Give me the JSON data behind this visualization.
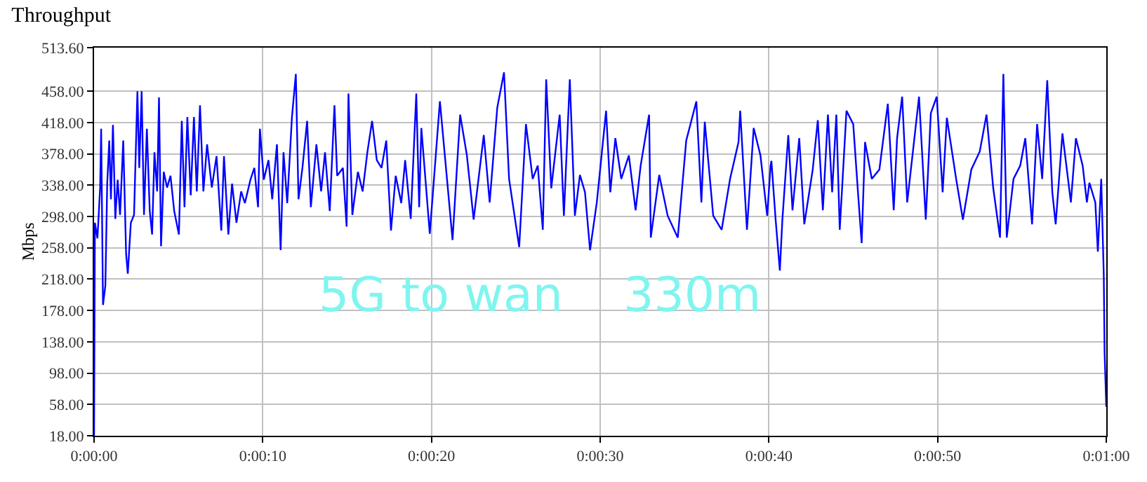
{
  "chart_data": {
    "type": "line",
    "title": "Throughput",
    "ylabel": "Mbps",
    "annotations": [
      "5G to wan    330m"
    ],
    "x": [
      0,
      0.05,
      0.2,
      0.36,
      0.42,
      0.53,
      0.67,
      0.78,
      0.9,
      1.0,
      1.12,
      1.26,
      1.4,
      1.54,
      1.73,
      1.9,
      2.0,
      2.18,
      2.37,
      2.57,
      2.68,
      2.82,
      2.96,
      3.13,
      3.3,
      3.44,
      3.58,
      3.74,
      3.85,
      3.97,
      4.13,
      4.33,
      4.53,
      4.75,
      5.03,
      5.2,
      5.36,
      5.53,
      5.73,
      5.92,
      6.09,
      6.28,
      6.48,
      6.7,
      6.98,
      7.26,
      7.54,
      7.7,
      7.96,
      8.18,
      8.44,
      8.72,
      8.94,
      9.27,
      9.5,
      9.72,
      9.83,
      10.06,
      10.34,
      10.56,
      10.84,
      11.06,
      11.23,
      11.45,
      11.73,
      11.96,
      12.12,
      12.35,
      12.63,
      12.85,
      13.18,
      13.46,
      13.69,
      13.97,
      14.25,
      14.41,
      14.75,
      14.97,
      15.08,
      15.31,
      15.64,
      15.92,
      16.2,
      16.48,
      16.76,
      17.04,
      17.32,
      17.6,
      17.88,
      18.21,
      18.44,
      18.77,
      19.1,
      19.27,
      19.4,
      19.9,
      20.5,
      21.25,
      21.7,
      22.1,
      22.5,
      23.1,
      23.45,
      23.9,
      24.3,
      24.6,
      25.2,
      25.6,
      26.0,
      26.3,
      26.6,
      26.8,
      27.1,
      27.6,
      27.85,
      28.2,
      28.5,
      28.8,
      29.1,
      29.4,
      29.8,
      30.35,
      30.6,
      30.9,
      31.25,
      31.7,
      32.1,
      32.4,
      32.9,
      33.0,
      33.5,
      34.0,
      34.6,
      35.1,
      35.7,
      36.0,
      36.2,
      36.7,
      37.2,
      37.7,
      38.2,
      38.3,
      38.7,
      39.1,
      39.5,
      39.9,
      40.1,
      40.15,
      40.4,
      40.65,
      40.8,
      41.15,
      41.4,
      41.8,
      42.1,
      42.6,
      42.9,
      43.2,
      43.5,
      43.75,
      44.0,
      44.2,
      44.6,
      45.0,
      45.3,
      45.5,
      45.7,
      46.1,
      46.55,
      47.05,
      47.4,
      47.6,
      47.9,
      48.2,
      48.6,
      48.9,
      49.3,
      49.6,
      49.95,
      50.3,
      50.55,
      51.1,
      51.5,
      52.0,
      52.5,
      52.9,
      53.3,
      53.7,
      53.9,
      54.1,
      54.5,
      54.9,
      55.2,
      55.6,
      55.9,
      56.2,
      56.5,
      56.8,
      57.0,
      57.4,
      57.9,
      58.2,
      58.6,
      58.85,
      59.0,
      59.35,
      59.5,
      59.7,
      59.85,
      59.9,
      60.0
    ],
    "series": [
      {
        "color": "#0000ff",
        "values": [
          18,
          290,
          270,
          335,
          410,
          185,
          210,
          340,
          395,
          320,
          415,
          295,
          345,
          300,
          395,
          250,
          225,
          290,
          300,
          458,
          360,
          458,
          300,
          410,
          305,
          275,
          380,
          330,
          450,
          260,
          355,
          335,
          350,
          305,
          275,
          420,
          310,
          425,
          325,
          425,
          330,
          440,
          330,
          390,
          335,
          375,
          280,
          375,
          275,
          340,
          290,
          330,
          315,
          345,
          360,
          310,
          410,
          345,
          370,
          320,
          390,
          255,
          380,
          315,
          425,
          480,
          320,
          360,
          420,
          310,
          390,
          330,
          380,
          305,
          440,
          350,
          360,
          285,
          455,
          300,
          355,
          330,
          380,
          420,
          370,
          360,
          395,
          280,
          350,
          315,
          370,
          295,
          455,
          310,
          411,
          276,
          445,
          268,
          428,
          376,
          294,
          402,
          316,
          437,
          482,
          346,
          259,
          416,
          346,
          363,
          281,
          473,
          334,
          428,
          299,
          473,
          299,
          351,
          329,
          255,
          316,
          433,
          329,
          398,
          346,
          376,
          306,
          363,
          428,
          271,
          351,
          299,
          271,
          395,
          445,
          316,
          419,
          299,
          281,
          346,
          393,
          433,
          281,
          411,
          376,
          299,
          363,
          369,
          294,
          229,
          294,
          402,
          306,
          398,
          288,
          358,
          421,
          306,
          428,
          329,
          428,
          281,
          433,
          416,
          323,
          264,
          393,
          346,
          358,
          442,
          306,
          398,
          451,
          316,
          393,
          451,
          294,
          430,
          451,
          329,
          424,
          346,
          294,
          358,
          381,
          428,
          334,
          271,
          480,
          271,
          346,
          363,
          398,
          288,
          416,
          346,
          472,
          329,
          288,
          404,
          316,
          398,
          363,
          316,
          341,
          316,
          253,
          346,
          224,
          124,
          55
        ]
      }
    ],
    "xlim": [
      0,
      60
    ],
    "xticks": [
      {
        "value": 0,
        "label": "0:00:00"
      },
      {
        "value": 10,
        "label": "0:00:10"
      },
      {
        "value": 20,
        "label": "0:00:20"
      },
      {
        "value": 30,
        "label": "0:00:30"
      },
      {
        "value": 40,
        "label": "0:00:40"
      },
      {
        "value": 50,
        "label": "0:00:50"
      },
      {
        "value": 60,
        "label": "0:01:00"
      }
    ],
    "ylim": [
      18,
      513.6
    ],
    "yticks": [
      {
        "value": 18,
        "label": "18.00"
      },
      {
        "value": 58,
        "label": "58.00"
      },
      {
        "value": 98,
        "label": "98.00"
      },
      {
        "value": 138,
        "label": "138.00"
      },
      {
        "value": 178,
        "label": "178.00"
      },
      {
        "value": 218,
        "label": "218.00"
      },
      {
        "value": 258,
        "label": "258.00"
      },
      {
        "value": 298,
        "label": "298.00"
      },
      {
        "value": 338,
        "label": "338.00"
      },
      {
        "value": 378,
        "label": "378.00"
      },
      {
        "value": 418,
        "label": "418.00"
      },
      {
        "value": 458,
        "label": "458.00"
      },
      {
        "value": 513.6,
        "label": "513.60"
      }
    ],
    "grid": true,
    "marker": "none",
    "line_style": "solid"
  }
}
